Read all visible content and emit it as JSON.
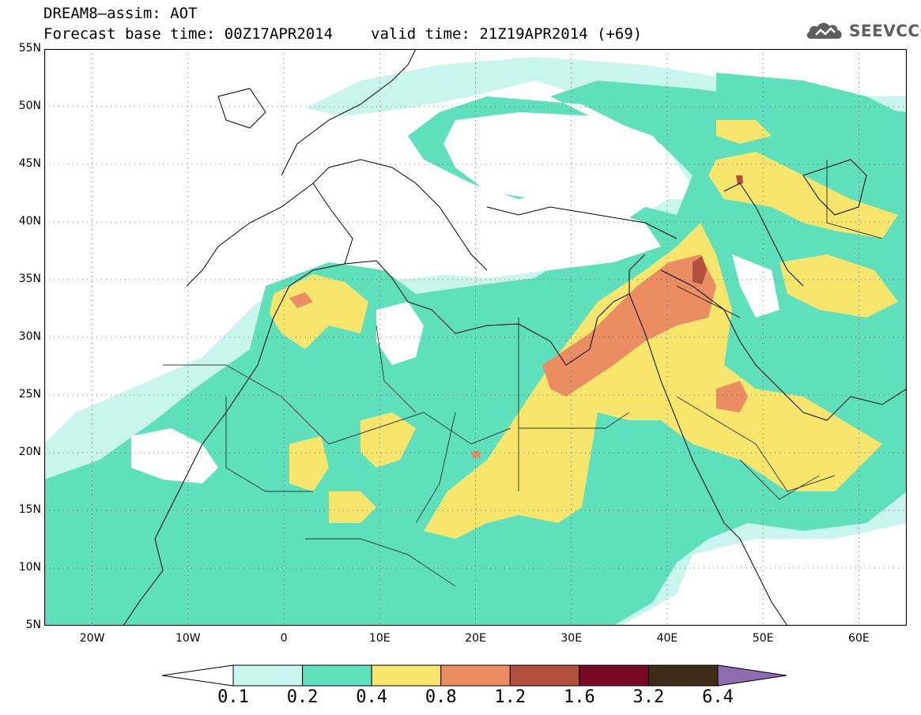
{
  "header": {
    "line1": "DREAM8–assim: AOT",
    "base_time": "Forecast base time: 00Z17APR2014",
    "valid_time": "valid time: 21Z19APR2014 (+69)"
  },
  "logo": {
    "text": "SEEVCCC",
    "icon": "cloud-icon"
  },
  "map": {
    "lon_range": [
      -25,
      65
    ],
    "lat_range": [
      5,
      55
    ],
    "lat_labels": [
      {
        "lat": 55,
        "label": "55N"
      },
      {
        "lat": 50,
        "label": "50N"
      },
      {
        "lat": 45,
        "label": "45N"
      },
      {
        "lat": 40,
        "label": "40N"
      },
      {
        "lat": 35,
        "label": "35N"
      },
      {
        "lat": 30,
        "label": "30N"
      },
      {
        "lat": 25,
        "label": "25N"
      },
      {
        "lat": 20,
        "label": "20N"
      },
      {
        "lat": 15,
        "label": "15N"
      },
      {
        "lat": 10,
        "label": "10N"
      },
      {
        "lat": 5,
        "label": "5N"
      }
    ],
    "lon_labels": [
      {
        "lon": -20,
        "label": "20W"
      },
      {
        "lon": -10,
        "label": "10W"
      },
      {
        "lon": 0,
        "label": "0"
      },
      {
        "lon": 10,
        "label": "10E"
      },
      {
        "lon": 20,
        "label": "20E"
      },
      {
        "lon": 30,
        "label": "30E"
      },
      {
        "lon": 40,
        "label": "40E"
      },
      {
        "lon": 50,
        "label": "50E"
      },
      {
        "lon": 60,
        "label": "60E"
      }
    ]
  },
  "colorbar": {
    "colors": [
      "#c9f5ef",
      "#5ee0bc",
      "#f7e56c",
      "#ea8d62",
      "#b1503d",
      "#790a26",
      "#3e2b18"
    ],
    "under_color": "#ffffff",
    "over_color": "#8f6bb4",
    "ticks": [
      "0.1",
      "0.2",
      "0.4",
      "0.8",
      "1.2",
      "1.6",
      "3.2",
      "6.4"
    ]
  }
}
